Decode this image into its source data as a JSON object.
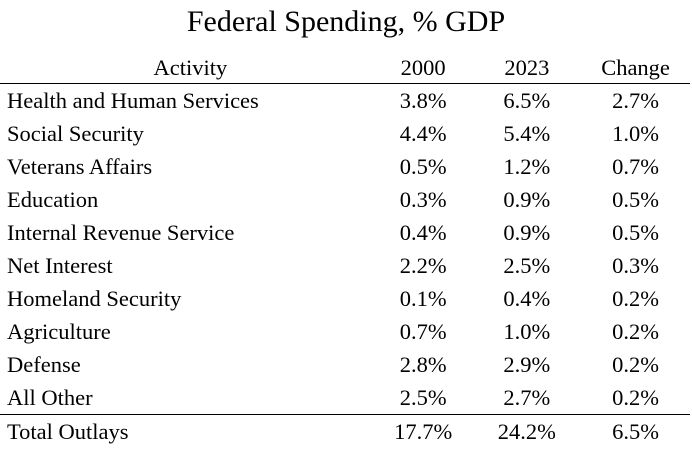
{
  "title": "Federal Spending, % GDP",
  "table": {
    "headers": {
      "activity": "Activity",
      "y2000": "2000",
      "y2023": "2023",
      "change": "Change"
    },
    "rows": [
      {
        "activity": "Health and Human Services",
        "y2000": "3.8%",
        "y2023": "6.5%",
        "change": "2.7%"
      },
      {
        "activity": "Social Security",
        "y2000": "4.4%",
        "y2023": "5.4%",
        "change": "1.0%"
      },
      {
        "activity": "Veterans Affairs",
        "y2000": "0.5%",
        "y2023": "1.2%",
        "change": "0.7%"
      },
      {
        "activity": "Education",
        "y2000": "0.3%",
        "y2023": "0.9%",
        "change": "0.5%"
      },
      {
        "activity": "Internal Revenue Service",
        "y2000": "0.4%",
        "y2023": "0.9%",
        "change": "0.5%"
      },
      {
        "activity": "Net Interest",
        "y2000": "2.2%",
        "y2023": "2.5%",
        "change": "0.3%"
      },
      {
        "activity": "Homeland Security",
        "y2000": "0.1%",
        "y2023": "0.4%",
        "change": "0.2%"
      },
      {
        "activity": "Agriculture",
        "y2000": "0.7%",
        "y2023": "1.0%",
        "change": "0.2%"
      },
      {
        "activity": "Defense",
        "y2000": "2.8%",
        "y2023": "2.9%",
        "change": "0.2%"
      },
      {
        "activity": "All Other",
        "y2000": "2.5%",
        "y2023": "2.7%",
        "change": "0.2%"
      }
    ],
    "total": {
      "activity": "Total Outlays",
      "y2000": "17.7%",
      "y2023": "24.2%",
      "change": "6.5%"
    }
  }
}
